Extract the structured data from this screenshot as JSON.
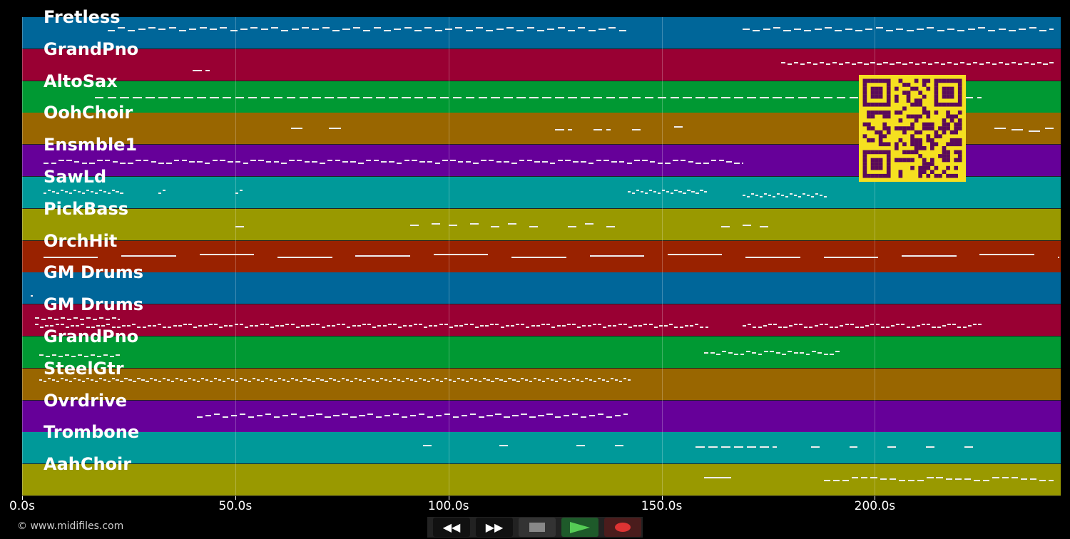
{
  "tracks": [
    {
      "name": "Fretless",
      "color": "#006699",
      "runs": [
        [
          20,
          142,
          2.4,
          0.35
        ],
        [
          169,
          242,
          2.4,
          0.35
        ]
      ]
    },
    {
      "name": "GrandPno",
      "color": "#990033",
      "runs": [
        [
          40,
          43,
          3,
          0.65
        ],
        [
          178,
          242,
          1.5,
          0.4
        ]
      ]
    },
    {
      "name": "AltoSax",
      "color": "#009933",
      "runs": [
        [
          17,
          225,
          3,
          0.45
        ]
      ]
    },
    {
      "name": "OohChoir",
      "color": "#996600",
      "runs": [
        [
          63,
          66,
          4,
          0.5
        ],
        [
          72,
          75,
          4,
          0.5
        ],
        [
          125,
          128,
          3,
          0.45
        ],
        [
          134,
          137,
          3,
          0.45
        ],
        [
          143,
          145,
          3,
          0.45
        ],
        [
          153,
          155,
          3,
          0.45
        ],
        [
          228,
          242,
          4,
          0.5
        ]
      ]
    },
    {
      "name": "Ensmble1",
      "color": "#660099",
      "runs": [
        [
          5,
          169,
          1.8,
          0.5
        ]
      ]
    },
    {
      "name": "SawLd",
      "color": "#009999",
      "runs": [
        [
          5,
          23,
          1,
          0.45
        ],
        [
          32,
          33,
          1,
          0.45
        ],
        [
          50,
          51,
          1,
          0.45
        ],
        [
          142,
          160,
          1,
          0.45
        ],
        [
          169,
          188,
          1,
          0.55
        ]
      ]
    },
    {
      "name": "PickBass",
      "color": "#999900",
      "runs": [
        [
          50,
          52,
          4,
          0.5
        ],
        [
          91,
          93,
          4,
          0.5
        ],
        [
          96,
          98,
          4,
          0.5
        ],
        [
          100,
          102,
          4,
          0.5
        ],
        [
          105,
          107,
          4,
          0.5
        ],
        [
          110,
          112,
          4,
          0.5
        ],
        [
          114,
          116,
          4,
          0.5
        ],
        [
          119,
          121,
          4,
          0.5
        ],
        [
          128,
          130,
          4,
          0.5
        ],
        [
          132,
          134,
          4,
          0.5
        ],
        [
          137,
          139,
          4,
          0.5
        ],
        [
          164,
          166,
          4,
          0.5
        ],
        [
          169,
          171,
          4,
          0.5
        ],
        [
          173,
          175,
          4,
          0.5
        ]
      ]
    },
    {
      "name": "OrchHit",
      "color": "#992200",
      "runs": [
        [
          5,
          243,
          18.3,
          0.45
        ]
      ]
    },
    {
      "name": "GM Drums",
      "color": "#006699",
      "runs": [
        [
          2,
          2.5,
          1,
          0.65
        ]
      ]
    },
    {
      "name": "GM Drums",
      "color": "#990033",
      "runs": [
        [
          3,
          161,
          1.2,
          0.65
        ],
        [
          169,
          225,
          1.2,
          0.65
        ],
        [
          3,
          23,
          1.5,
          0.45
        ]
      ]
    },
    {
      "name": "GrandPno",
      "color": "#009933",
      "runs": [
        [
          4,
          23,
          1.5,
          0.55
        ],
        [
          160,
          192,
          1.4,
          0.5
        ]
      ]
    },
    {
      "name": "SteelGtr",
      "color": "#996600",
      "runs": [
        [
          4,
          142,
          1,
          0.35
        ]
      ]
    },
    {
      "name": "Ovrdrive",
      "color": "#660099",
      "runs": [
        [
          41,
          142,
          2,
          0.45
        ]
      ]
    },
    {
      "name": "Trombone",
      "color": "#009999",
      "runs": [
        [
          94,
          96,
          4,
          0.4
        ],
        [
          112,
          114,
          4,
          0.4
        ],
        [
          130,
          132,
          4,
          0.4
        ],
        [
          139,
          141,
          4,
          0.4
        ],
        [
          158,
          176,
          3,
          0.4
        ],
        [
          185,
          187,
          4,
          0.4
        ],
        [
          194,
          196,
          4,
          0.4
        ],
        [
          203,
          205,
          4,
          0.4
        ],
        [
          212,
          214,
          4,
          0.4
        ],
        [
          221,
          223,
          4,
          0.4
        ]
      ]
    },
    {
      "name": "AahChoir",
      "color": "#999900",
      "runs": [
        [
          160,
          168,
          9,
          0.4
        ],
        [
          188,
          242,
          2.2,
          0.45
        ]
      ]
    }
  ],
  "axis": {
    "max_seconds": 243.6,
    "ticks": [
      {
        "v": 0,
        "label": "0.0s"
      },
      {
        "v": 50,
        "label": "50.0s"
      },
      {
        "v": 100,
        "label": "100.0s"
      },
      {
        "v": 150,
        "label": "150.0s"
      },
      {
        "v": 200,
        "label": "200.0s"
      }
    ]
  },
  "copyright": "© www.midifiles.com",
  "controls": {
    "rewind": "◀◀",
    "forward": "▶▶"
  }
}
